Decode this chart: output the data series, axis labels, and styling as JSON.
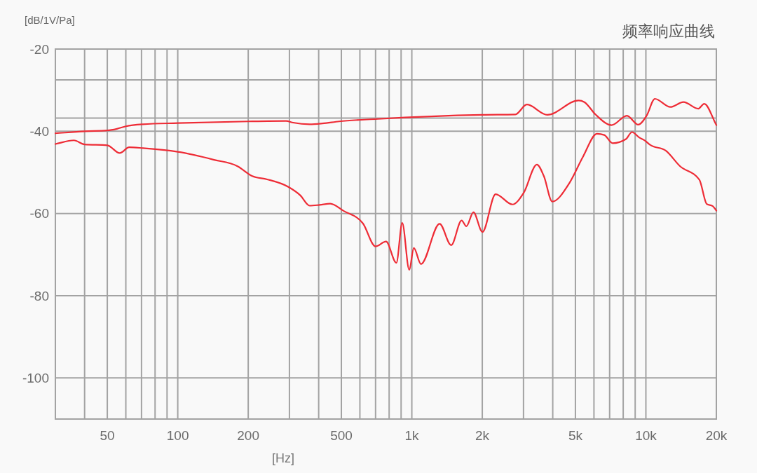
{
  "chart_data": {
    "type": "line",
    "title": "频率响应曲线",
    "xlabel": "[Hz]",
    "ylabel": "[dB/1V/Pa]",
    "log": "x",
    "grid": true,
    "xlim": [
      30,
      20000
    ],
    "ylim": [
      -110,
      -20
    ],
    "xticks": [
      {
        "value": 40,
        "label": null
      },
      50,
      {
        "value": 60,
        "label": null
      },
      {
        "value": 70,
        "label": null
      },
      {
        "value": 80,
        "label": null
      },
      {
        "value": 90,
        "label": null
      },
      100,
      200,
      {
        "value": 300,
        "label": null
      },
      {
        "value": 400,
        "label": null
      },
      500,
      {
        "value": 600,
        "label": null
      },
      {
        "value": 700,
        "label": null
      },
      {
        "value": 800,
        "label": null
      },
      {
        "value": 900,
        "label": null
      },
      {
        "value": 1000,
        "label": "1k"
      },
      {
        "value": 2000,
        "label": "2k"
      },
      {
        "value": 3000,
        "label": null
      },
      {
        "value": 4000,
        "label": null
      },
      {
        "value": 5000,
        "label": "5k"
      },
      {
        "value": 6000,
        "label": null
      },
      {
        "value": 7000,
        "label": null
      },
      {
        "value": 8000,
        "label": null
      },
      {
        "value": 9000,
        "label": null
      },
      {
        "value": 10000,
        "label": "10k"
      },
      {
        "value": 20000,
        "label": "20k"
      }
    ],
    "yticks": [
      -20,
      {
        "value": -27.5,
        "label": null
      },
      {
        "value": -36.8,
        "label": null
      },
      -40,
      -60,
      -80,
      -100
    ],
    "series": [
      {
        "color": "#ee2c36",
        "x": [
          30,
          40,
          50,
          55,
          60,
          71,
          100,
          200,
          290,
          311,
          366,
          415,
          489,
          714,
          2000,
          2770,
          3100,
          3790,
          5160,
          5460,
          6090,
          7140,
          8300,
          9270,
          10070,
          10930,
          12720,
          14480,
          16750,
          17750,
          20000
        ],
        "values": [
          -40.5,
          -40.0,
          -39.8,
          -39.4,
          -38.8,
          -38.3,
          -38.0,
          -37.6,
          -37.5,
          -37.9,
          -38.3,
          -38.1,
          -37.6,
          -37.0,
          -36.0,
          -35.9,
          -33.5,
          -36.0,
          -32.5,
          -32.9,
          -35.9,
          -38.5,
          -36.2,
          -38.4,
          -36.2,
          -32.1,
          -34.1,
          -32.9,
          -34.5,
          -33.3,
          -38.5
        ]
      },
      {
        "color": "#ee2c36",
        "x": [
          30,
          36,
          40,
          50,
          56.5,
          62,
          71,
          100,
          142,
          180,
          208,
          241,
          296,
          334,
          366,
          404,
          448,
          512,
          618,
          700,
          776,
          859,
          910,
          975,
          1020,
          1094,
          1314,
          1473,
          1632,
          1710,
          1833,
          2003,
          2280,
          2690,
          3004,
          3422,
          3665,
          3980,
          4700,
          5385,
          6180,
          6640,
          7210,
          8220,
          8720,
          9360,
          9930,
          10420,
          12150,
          14000,
          16930,
          18200,
          19290,
          20000
        ],
        "values": [
          -43.1,
          -42.2,
          -43.2,
          -43.4,
          -45.3,
          -43.9,
          -44.1,
          -45.0,
          -46.9,
          -48.5,
          -50.9,
          -51.7,
          -53.5,
          -55.6,
          -58.1,
          -57.9,
          -57.6,
          -59.4,
          -62.4,
          -68.0,
          -66.8,
          -72.0,
          -62.3,
          -73.7,
          -68.4,
          -72.3,
          -62.5,
          -67.7,
          -61.7,
          -63.1,
          -59.7,
          -64.5,
          -55.3,
          -57.8,
          -55.0,
          -48.1,
          -50.9,
          -57.1,
          -52.7,
          -46.2,
          -40.6,
          -40.9,
          -42.9,
          -41.9,
          -40.2,
          -41.5,
          -42.3,
          -43.3,
          -44.7,
          -48.5,
          -51.8,
          -57.7,
          -58.2,
          -59.3
        ]
      }
    ]
  }
}
